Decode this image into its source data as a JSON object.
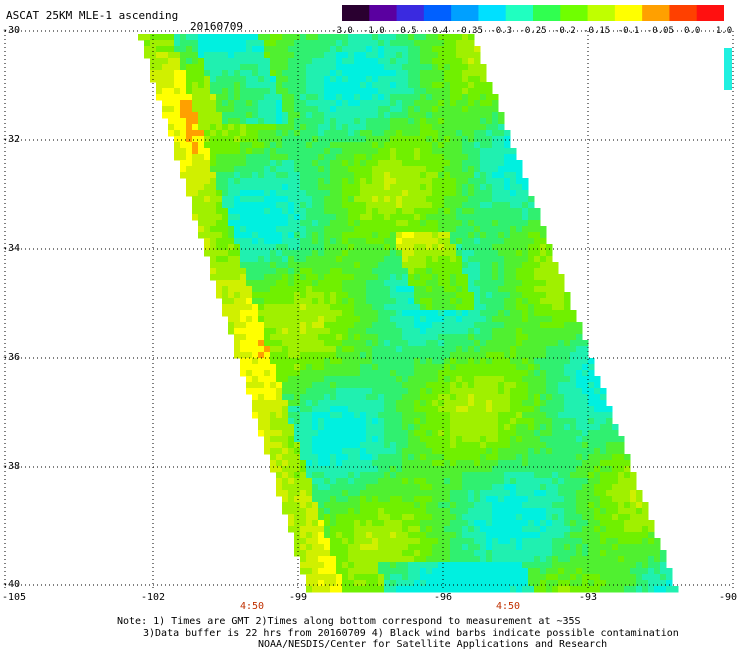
{
  "title": "ASCAT 25KM MLE-1 ascending",
  "date": "20160709",
  "colorbar": {
    "labels": [
      "-3.0",
      "-1.0",
      "-0.5",
      "-0.4",
      "-0.35",
      "-0.3",
      "-0.25",
      "-0.2",
      "-0.15",
      "-0.1",
      "-0.05",
      "0.0",
      "1.0"
    ],
    "colors": [
      "#2a0030",
      "#5a00a0",
      "#3a2ae0",
      "#0060ff",
      "#00a0ff",
      "#00e0ff",
      "#20ffc0",
      "#30ff50",
      "#70ff00",
      "#c0ff00",
      "#ffff00",
      "#ffa000",
      "#ff4000",
      "#ff1010"
    ]
  },
  "latitudes": [
    "-30",
    "-32",
    "-34",
    "-36",
    "-38",
    "-40"
  ],
  "longitudes": [
    "-105",
    "-102",
    "-99",
    "-96",
    "-93",
    "-90"
  ],
  "times": [
    "4:50",
    "4:50"
  ],
  "notes": [
    "Note: 1) Times are GMT 2)Times along bottom correspond to measurement at ~35S",
    "3)Data buffer is 22 hrs from 20160709 4) Black wind barbs indicate possible contamination",
    "NOAA/NESDIS/Center for Satellite Applications and Research"
  ]
}
